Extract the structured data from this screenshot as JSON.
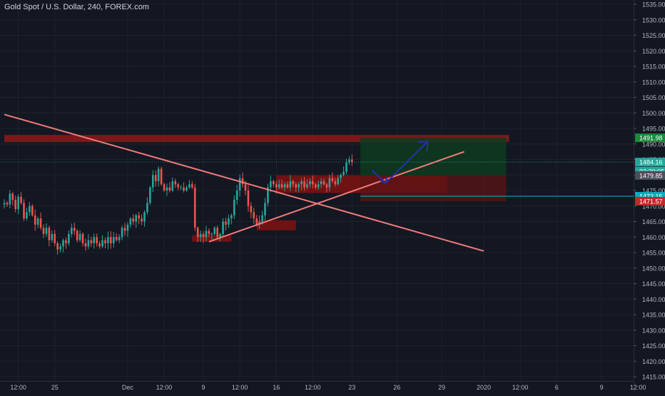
{
  "header": {
    "title": "Gold Spot / U.S. Dollar, 240, FOREX.com"
  },
  "colors": {
    "background": "#131722",
    "grid": "#1e222d",
    "axis_text": "#b2b5be",
    "up": "#26a69a",
    "down": "#ef5350",
    "trendline": "#f07a7a",
    "resistance_zone": "#8b1a1a",
    "demand_zone": "#7a1212",
    "long_target": "#0e3b1f",
    "long_stop": "#5c1414",
    "arrow": "#2a2ea8",
    "price_line": "#26a69a"
  },
  "chart_data": {
    "type": "candlestick",
    "symbol": "Gold Spot / U.S. Dollar",
    "interval": "240",
    "broker": "FOREX.com",
    "y_axis": {
      "ylim": [
        1412,
        1537
      ],
      "ticks": [
        1415,
        1420,
        1425,
        1430,
        1435,
        1440,
        1445,
        1450,
        1455,
        1460,
        1465,
        1470,
        1475,
        1480,
        1485,
        1490,
        1495,
        1500,
        1505,
        1510,
        1515,
        1520,
        1525,
        1530,
        1535
      ],
      "tick_labels": [
        "1415.00",
        "1420.00",
        "1425.00",
        "1430.00",
        "1435.00",
        "1440.00",
        "1445.00",
        "1450.00",
        "1455.00",
        "1460.00",
        "1465.00",
        "1470.00",
        "1475.00",
        "1480.00",
        "1485.00",
        "1490.00",
        "1495.00",
        "1500.00",
        "1505.00",
        "1510.00",
        "1515.00",
        "1520.00",
        "1525.00",
        "1530.00",
        "1535.00"
      ]
    },
    "x_axis": {
      "bar_range": [
        0,
        228
      ],
      "ticks": [
        {
          "bar": 5,
          "label": "12:00"
        },
        {
          "bar": 18,
          "label": "25"
        },
        {
          "bar": 44,
          "label": "Dec"
        },
        {
          "bar": 57,
          "label": "12:00"
        },
        {
          "bar": 71,
          "label": "9"
        },
        {
          "bar": 84,
          "label": "12:00"
        },
        {
          "bar": 97,
          "label": "16"
        },
        {
          "bar": 110,
          "label": "12:00"
        },
        {
          "bar": 124,
          "label": "23"
        },
        {
          "bar": 140,
          "label": "26"
        },
        {
          "bar": 156,
          "label": "29"
        },
        {
          "bar": 171,
          "label": "2020"
        },
        {
          "bar": 184,
          "label": "12:00"
        },
        {
          "bar": 197,
          "label": "6"
        },
        {
          "bar": 213,
          "label": "9"
        },
        {
          "bar": 226,
          "label": "12:00"
        }
      ]
    },
    "candles_close": [
      1471,
      1470.5,
      1474,
      1472,
      1469,
      1473,
      1471,
      1466,
      1468,
      1470,
      1467,
      1464,
      1466,
      1463,
      1461,
      1463,
      1459,
      1461,
      1458,
      1456,
      1457,
      1459,
      1458,
      1461,
      1463,
      1462,
      1459,
      1461,
      1458,
      1457,
      1459,
      1458,
      1460,
      1458,
      1457,
      1459,
      1458,
      1460,
      1458,
      1460,
      1459,
      1460,
      1463,
      1462,
      1464,
      1466,
      1465,
      1467,
      1466,
      1465,
      1468,
      1471,
      1476,
      1480,
      1478,
      1482,
      1477,
      1475,
      1476,
      1475,
      1478,
      1477,
      1476,
      1476,
      1475,
      1476,
      1477,
      1476,
      1463,
      1460,
      1461,
      1460,
      1462,
      1461,
      1461,
      1463,
      1460,
      1461,
      1465,
      1464,
      1466,
      1467,
      1472,
      1475,
      1479,
      1477,
      1475,
      1470,
      1468,
      1466,
      1464,
      1465,
      1467,
      1471,
      1476,
      1478,
      1477,
      1476,
      1477,
      1476,
      1477,
      1476,
      1478,
      1477,
      1476,
      1477,
      1478,
      1476,
      1477,
      1478,
      1477,
      1476,
      1477,
      1478,
      1477,
      1476,
      1479,
      1478,
      1477,
      1479,
      1480,
      1481,
      1484,
      1485,
      1484.16
    ],
    "last_price": 1484.16,
    "labels": {
      "resistance": "1491.98",
      "last": "1484.16",
      "countdown": "02:30:05",
      "entry": "1479.85",
      "cyan_level": "1473.15",
      "stop": "1471.57"
    },
    "levels": {
      "resistance": 1491.98,
      "last": 1484.16,
      "entry": 1479.85,
      "cyan_level": 1473.15,
      "stop": 1471.57
    },
    "zones": [
      {
        "name": "resistance-zone",
        "x": [
          0,
          180
        ],
        "y": [
          1490.6,
          1492.9
        ]
      },
      {
        "name": "consolidation-zone",
        "x": [
          97,
          158
        ],
        "y": [
          1474.2,
          1479.9
        ]
      },
      {
        "name": "demand-zone-mid",
        "x": [
          90,
          104
        ],
        "y": [
          1462.2,
          1465.4
        ]
      },
      {
        "name": "demand-zone-low",
        "x": [
          67,
          81
        ],
        "y": [
          1458.5,
          1460.6
        ]
      },
      {
        "name": "long-target",
        "x": [
          127,
          179
        ],
        "y": [
          1479.85,
          1491.98
        ]
      },
      {
        "name": "long-stop",
        "x": [
          127,
          179
        ],
        "y": [
          1471.57,
          1479.85
        ]
      }
    ],
    "trendlines": [
      {
        "name": "descending-trendline",
        "from": [
          0,
          1499.5
        ],
        "to": [
          171,
          1455.5
        ]
      },
      {
        "name": "ascending-trendline",
        "from": [
          73,
          1458.5
        ],
        "to": [
          164,
          1487.5
        ]
      }
    ],
    "projection_arrow": {
      "points": [
        [
          131,
          1481.6
        ],
        [
          136,
          1477.4
        ],
        [
          151,
          1490.8
        ]
      ]
    }
  }
}
